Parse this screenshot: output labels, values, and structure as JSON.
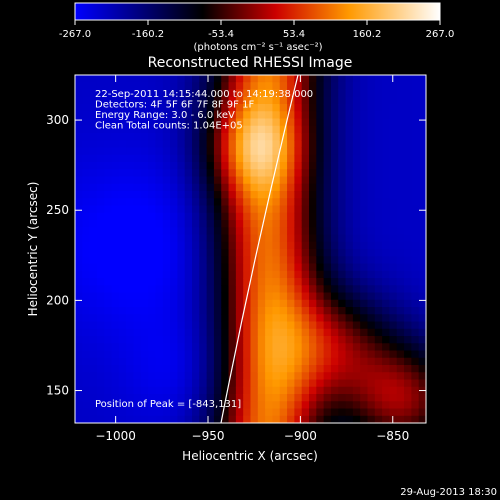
{
  "chart_data": {
    "type": "heatmap",
    "title": "Reconstructed RHESSI Image",
    "xlabel": "Heliocentric X (arcsec)",
    "ylabel": "Heliocentric Y (arcsec)",
    "xlim": [
      -1022,
      -832
    ],
    "ylim": [
      132,
      325
    ],
    "x_ticks": [
      -1000,
      -950,
      -900,
      -850
    ],
    "y_ticks": [
      150,
      200,
      250,
      300
    ],
    "colorbar": {
      "min": -267.0,
      "max": 267.0,
      "ticks": [
        "-267.0",
        "-160.2",
        "-53.4",
        "53.4",
        "160.2",
        "267.0"
      ],
      "units_label": "(photons cm⁻² s⁻¹ asec⁻²)"
    },
    "annotations": [
      "22-Sep-2011 14:15:44.000 to 14:19:38.000",
      "Detectors: 4F 5F 6F 7F 8F 9F 1F",
      "Energy Range: 3.0 - 6.0 keV",
      "Clean     Total counts: 1.04E+05"
    ],
    "peak_label": "Position of Peak = [-843,131]",
    "peak": [
      -843,
      131
    ],
    "timestamp": "29-Aug-2013 18:30"
  }
}
